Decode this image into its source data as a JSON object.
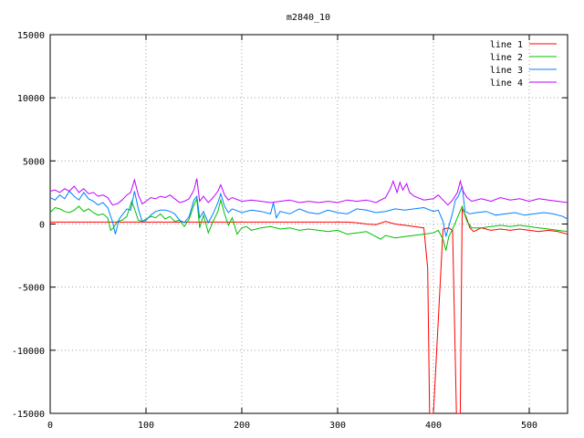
{
  "chart_data": {
    "type": "line",
    "title": "m2840_10",
    "xlabel": "",
    "ylabel": "",
    "xlim": [
      0,
      540
    ],
    "ylim": [
      -15000,
      15000
    ],
    "grid": true,
    "legend_position": "top-right",
    "x_ticks": [
      "0",
      "100",
      "200",
      "300",
      "400",
      "500"
    ],
    "y_ticks": [
      "15000",
      "10000",
      "5000",
      "0",
      "-5000",
      "-10000",
      "-15000"
    ],
    "series": [
      {
        "name": "line 1",
        "color": "#ff0000",
        "points": [
          [
            0,
            150
          ],
          [
            20,
            150
          ],
          [
            40,
            150
          ],
          [
            60,
            150
          ],
          [
            80,
            150
          ],
          [
            100,
            150
          ],
          [
            120,
            150
          ],
          [
            140,
            150
          ],
          [
            160,
            150
          ],
          [
            180,
            150
          ],
          [
            200,
            150
          ],
          [
            220,
            150
          ],
          [
            240,
            150
          ],
          [
            260,
            150
          ],
          [
            280,
            150
          ],
          [
            300,
            150
          ],
          [
            310,
            150
          ],
          [
            320,
            100
          ],
          [
            330,
            0
          ],
          [
            340,
            -50
          ],
          [
            350,
            200
          ],
          [
            360,
            0
          ],
          [
            370,
            -100
          ],
          [
            380,
            -200
          ],
          [
            390,
            -300
          ],
          [
            394,
            -3500
          ],
          [
            396,
            -15000
          ],
          [
            400,
            -15000
          ],
          [
            410,
            -400
          ],
          [
            416,
            -300
          ],
          [
            420,
            -500
          ],
          [
            424,
            -15000
          ],
          [
            428,
            -15000
          ],
          [
            430,
            1200
          ],
          [
            434,
            600
          ],
          [
            438,
            -300
          ],
          [
            442,
            -600
          ],
          [
            450,
            -300
          ],
          [
            460,
            -500
          ],
          [
            470,
            -400
          ],
          [
            480,
            -500
          ],
          [
            490,
            -400
          ],
          [
            500,
            -500
          ],
          [
            510,
            -600
          ],
          [
            520,
            -500
          ],
          [
            530,
            -600
          ],
          [
            540,
            -800
          ]
        ]
      },
      {
        "name": "line 2",
        "color": "#00c000",
        "points": [
          [
            0,
            900
          ],
          [
            5,
            1300
          ],
          [
            10,
            1200
          ],
          [
            15,
            1000
          ],
          [
            20,
            900
          ],
          [
            25,
            1100
          ],
          [
            30,
            1400
          ],
          [
            35,
            1000
          ],
          [
            40,
            1200
          ],
          [
            45,
            900
          ],
          [
            50,
            700
          ],
          [
            55,
            800
          ],
          [
            60,
            500
          ],
          [
            63,
            -500
          ],
          [
            66,
            -300
          ],
          [
            70,
            200
          ],
          [
            75,
            300
          ],
          [
            80,
            600
          ],
          [
            85,
            1800
          ],
          [
            88,
            1200
          ],
          [
            92,
            300
          ],
          [
            96,
            200
          ],
          [
            100,
            400
          ],
          [
            105,
            600
          ],
          [
            110,
            500
          ],
          [
            115,
            800
          ],
          [
            120,
            400
          ],
          [
            125,
            600
          ],
          [
            130,
            200
          ],
          [
            135,
            300
          ],
          [
            140,
            -200
          ],
          [
            145,
            400
          ],
          [
            150,
            1500
          ],
          [
            153,
            2000
          ],
          [
            156,
            -300
          ],
          [
            160,
            700
          ],
          [
            165,
            -700
          ],
          [
            170,
            200
          ],
          [
            175,
            1000
          ],
          [
            178,
            1900
          ],
          [
            182,
            800
          ],
          [
            186,
            -100
          ],
          [
            190,
            500
          ],
          [
            195,
            -800
          ],
          [
            200,
            -300
          ],
          [
            205,
            -200
          ],
          [
            210,
            -500
          ],
          [
            215,
            -400
          ],
          [
            220,
            -300
          ],
          [
            230,
            -200
          ],
          [
            240,
            -400
          ],
          [
            250,
            -300
          ],
          [
            260,
            -500
          ],
          [
            270,
            -400
          ],
          [
            280,
            -500
          ],
          [
            290,
            -600
          ],
          [
            300,
            -500
          ],
          [
            310,
            -800
          ],
          [
            320,
            -700
          ],
          [
            330,
            -600
          ],
          [
            340,
            -1000
          ],
          [
            345,
            -1200
          ],
          [
            350,
            -900
          ],
          [
            360,
            -1100
          ],
          [
            370,
            -1000
          ],
          [
            380,
            -900
          ],
          [
            390,
            -800
          ],
          [
            400,
            -700
          ],
          [
            405,
            -500
          ],
          [
            410,
            -1200
          ],
          [
            413,
            -2100
          ],
          [
            416,
            -1000
          ],
          [
            420,
            -400
          ],
          [
            425,
            500
          ],
          [
            430,
            1400
          ],
          [
            435,
            200
          ],
          [
            440,
            -300
          ],
          [
            450,
            -300
          ],
          [
            460,
            -200
          ],
          [
            470,
            -100
          ],
          [
            480,
            -200
          ],
          [
            490,
            -100
          ],
          [
            500,
            -200
          ],
          [
            510,
            -300
          ],
          [
            520,
            -400
          ],
          [
            530,
            -500
          ],
          [
            540,
            -600
          ]
        ]
      },
      {
        "name": "line 3",
        "color": "#0080ff",
        "points": [
          [
            0,
            2100
          ],
          [
            5,
            1900
          ],
          [
            10,
            2300
          ],
          [
            15,
            2000
          ],
          [
            20,
            2600
          ],
          [
            25,
            2200
          ],
          [
            30,
            1900
          ],
          [
            35,
            2500
          ],
          [
            40,
            2000
          ],
          [
            45,
            1800
          ],
          [
            50,
            1500
          ],
          [
            55,
            1700
          ],
          [
            60,
            1300
          ],
          [
            65,
            200
          ],
          [
            68,
            -800
          ],
          [
            72,
            400
          ],
          [
            76,
            800
          ],
          [
            80,
            1200
          ],
          [
            84,
            1100
          ],
          [
            88,
            2600
          ],
          [
            92,
            1200
          ],
          [
            96,
            200
          ],
          [
            100,
            300
          ],
          [
            105,
            700
          ],
          [
            110,
            1000
          ],
          [
            115,
            1100
          ],
          [
            120,
            1100
          ],
          [
            125,
            1000
          ],
          [
            130,
            800
          ],
          [
            135,
            300
          ],
          [
            140,
            100
          ],
          [
            145,
            600
          ],
          [
            150,
            1900
          ],
          [
            153,
            2200
          ],
          [
            156,
            500
          ],
          [
            160,
            1000
          ],
          [
            165,
            100
          ],
          [
            170,
            800
          ],
          [
            175,
            1700
          ],
          [
            178,
            2400
          ],
          [
            182,
            1400
          ],
          [
            186,
            900
          ],
          [
            190,
            1200
          ],
          [
            200,
            900
          ],
          [
            210,
            1100
          ],
          [
            220,
            1000
          ],
          [
            230,
            800
          ],
          [
            233,
            1700
          ],
          [
            236,
            500
          ],
          [
            240,
            1000
          ],
          [
            250,
            800
          ],
          [
            260,
            1200
          ],
          [
            270,
            900
          ],
          [
            280,
            800
          ],
          [
            290,
            1100
          ],
          [
            300,
            900
          ],
          [
            310,
            800
          ],
          [
            320,
            1200
          ],
          [
            330,
            1100
          ],
          [
            340,
            900
          ],
          [
            350,
            1000
          ],
          [
            360,
            1200
          ],
          [
            370,
            1100
          ],
          [
            380,
            1200
          ],
          [
            390,
            1300
          ],
          [
            400,
            1000
          ],
          [
            405,
            1100
          ],
          [
            410,
            200
          ],
          [
            413,
            -1000
          ],
          [
            416,
            -200
          ],
          [
            420,
            900
          ],
          [
            423,
            1900
          ],
          [
            426,
            2200
          ],
          [
            430,
            3000
          ],
          [
            433,
            1000
          ],
          [
            438,
            800
          ],
          [
            445,
            900
          ],
          [
            455,
            1000
          ],
          [
            465,
            700
          ],
          [
            475,
            800
          ],
          [
            485,
            900
          ],
          [
            495,
            700
          ],
          [
            505,
            800
          ],
          [
            515,
            900
          ],
          [
            525,
            800
          ],
          [
            535,
            600
          ],
          [
            540,
            400
          ]
        ]
      },
      {
        "name": "line 4",
        "color": "#c000ff",
        "points": [
          [
            0,
            2600
          ],
          [
            5,
            2700
          ],
          [
            10,
            2500
          ],
          [
            15,
            2800
          ],
          [
            20,
            2600
          ],
          [
            25,
            3000
          ],
          [
            30,
            2500
          ],
          [
            35,
            2800
          ],
          [
            40,
            2400
          ],
          [
            45,
            2500
          ],
          [
            50,
            2200
          ],
          [
            55,
            2300
          ],
          [
            60,
            2100
          ],
          [
            65,
            1500
          ],
          [
            70,
            1600
          ],
          [
            75,
            1900
          ],
          [
            80,
            2300
          ],
          [
            84,
            2500
          ],
          [
            88,
            3500
          ],
          [
            92,
            2300
          ],
          [
            96,
            1600
          ],
          [
            100,
            1800
          ],
          [
            105,
            2100
          ],
          [
            110,
            2000
          ],
          [
            115,
            2200
          ],
          [
            120,
            2100
          ],
          [
            125,
            2300
          ],
          [
            130,
            2000
          ],
          [
            135,
            1700
          ],
          [
            140,
            1800
          ],
          [
            145,
            2000
          ],
          [
            150,
            2700
          ],
          [
            153,
            3600
          ],
          [
            156,
            1800
          ],
          [
            160,
            2200
          ],
          [
            165,
            1700
          ],
          [
            170,
            2100
          ],
          [
            175,
            2600
          ],
          [
            178,
            3100
          ],
          [
            182,
            2300
          ],
          [
            186,
            1900
          ],
          [
            190,
            2100
          ],
          [
            200,
            1800
          ],
          [
            210,
            1900
          ],
          [
            220,
            1800
          ],
          [
            230,
            1700
          ],
          [
            240,
            1800
          ],
          [
            250,
            1900
          ],
          [
            260,
            1700
          ],
          [
            270,
            1800
          ],
          [
            280,
            1700
          ],
          [
            290,
            1800
          ],
          [
            300,
            1700
          ],
          [
            310,
            1900
          ],
          [
            320,
            1800
          ],
          [
            330,
            1900
          ],
          [
            340,
            1700
          ],
          [
            350,
            2100
          ],
          [
            355,
            2800
          ],
          [
            358,
            3400
          ],
          [
            362,
            2500
          ],
          [
            365,
            3300
          ],
          [
            368,
            2700
          ],
          [
            372,
            3200
          ],
          [
            375,
            2500
          ],
          [
            380,
            2200
          ],
          [
            390,
            1900
          ],
          [
            400,
            2000
          ],
          [
            405,
            2300
          ],
          [
            410,
            1900
          ],
          [
            415,
            1500
          ],
          [
            420,
            1900
          ],
          [
            425,
            2500
          ],
          [
            428,
            3400
          ],
          [
            431,
            2600
          ],
          [
            435,
            2100
          ],
          [
            440,
            1800
          ],
          [
            450,
            2000
          ],
          [
            460,
            1800
          ],
          [
            470,
            2100
          ],
          [
            480,
            1900
          ],
          [
            490,
            2000
          ],
          [
            500,
            1800
          ],
          [
            510,
            2000
          ],
          [
            520,
            1900
          ],
          [
            530,
            1800
          ],
          [
            540,
            1700
          ]
        ]
      }
    ]
  }
}
